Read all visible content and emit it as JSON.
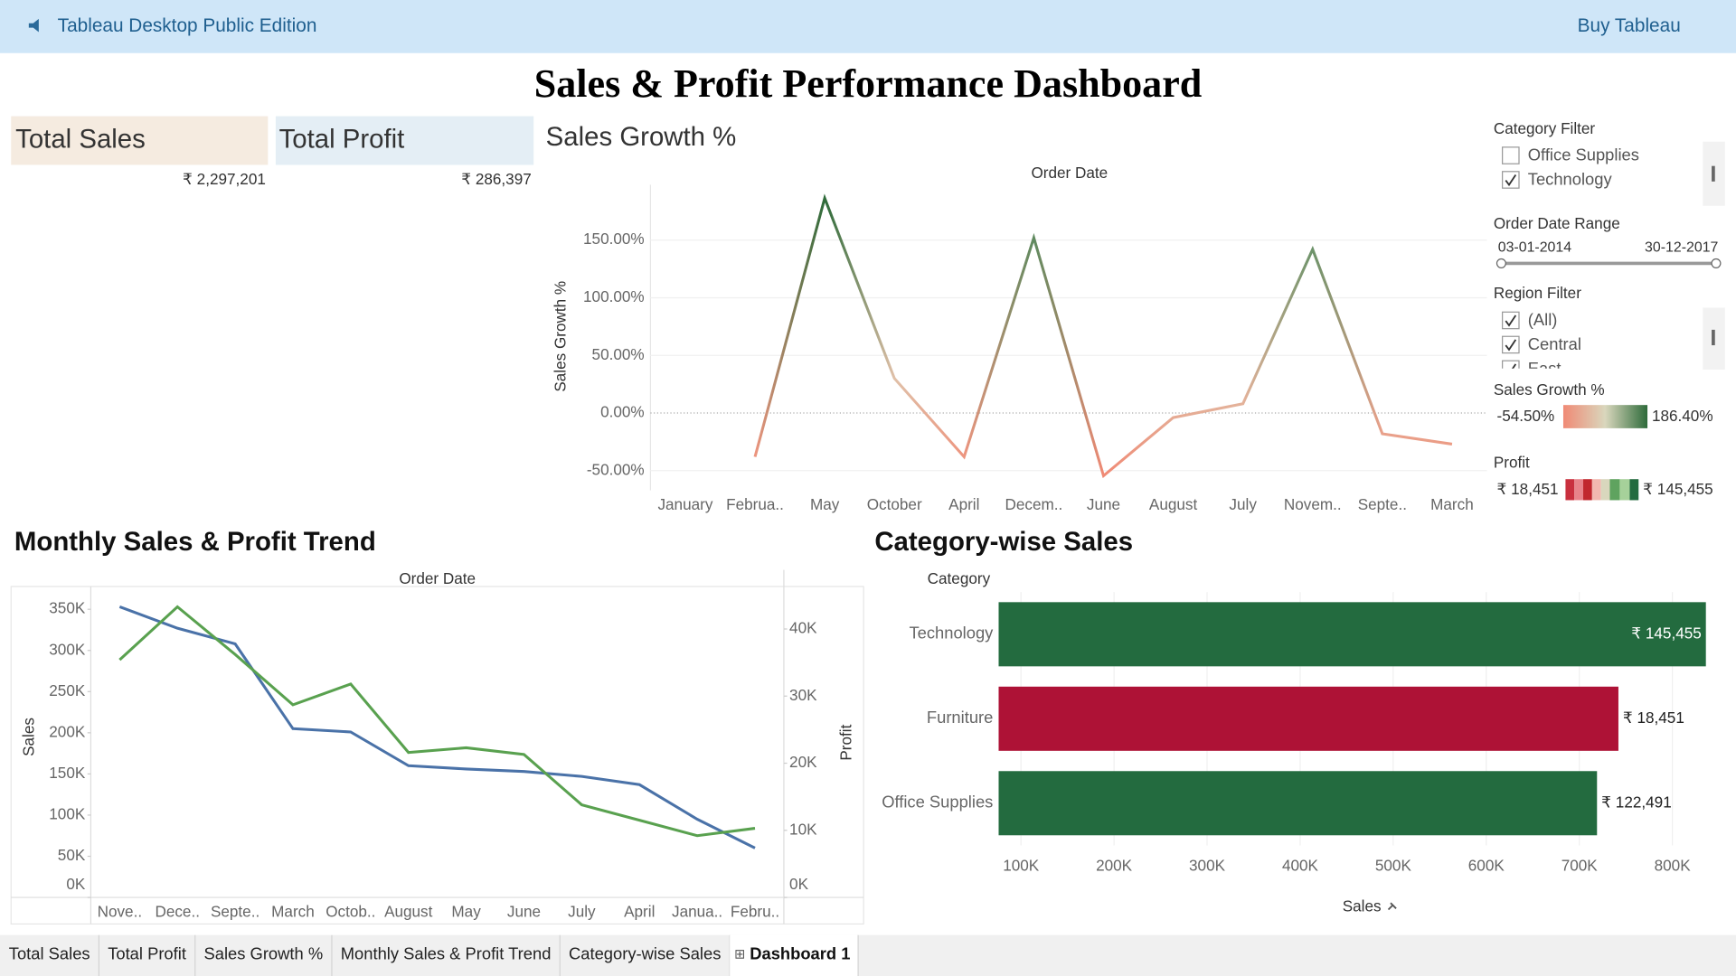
{
  "header": {
    "app_name": "Tableau Desktop Public Edition",
    "buy": "Buy Tableau"
  },
  "title": "Sales & Profit Performance Dashboard",
  "kpis": [
    {
      "label": "Total Sales",
      "value": "₹ 2,297,201"
    },
    {
      "label": "Total Profit",
      "value": "₹ 286,397"
    }
  ],
  "filters": {
    "category": {
      "title": "Category Filter",
      "options": [
        {
          "label": "Office Supplies",
          "checked": false
        },
        {
          "label": "Technology",
          "checked": true
        }
      ]
    },
    "date_range": {
      "title": "Order Date Range",
      "start": "03-01-2014",
      "end": "30-12-2017"
    },
    "region": {
      "title": "Region Filter",
      "options": [
        {
          "label": "(All)",
          "checked": true
        },
        {
          "label": "Central",
          "checked": true
        },
        {
          "label": "East",
          "checked": true
        }
      ]
    }
  },
  "tabs": [
    {
      "label": "Total Sales",
      "active": false
    },
    {
      "label": "Total Profit",
      "active": false
    },
    {
      "label": "Sales Growth %",
      "active": false
    },
    {
      "label": "Monthly Sales & Profit Trend",
      "active": false
    },
    {
      "label": "Category-wise Sales",
      "active": false
    },
    {
      "label": "Dashboard 1",
      "active": true
    }
  ],
  "chart_data": [
    {
      "type": "line",
      "title": "Sales Growth %",
      "x_label": "Order Date",
      "y_label": "Sales Growth %",
      "categories": [
        "January",
        "Februa..",
        "May",
        "October",
        "April",
        "Decem..",
        "June",
        "August",
        "July",
        "Novem..",
        "Septe..",
        "March"
      ],
      "values": [
        null,
        -38,
        186.4,
        30,
        -38,
        152,
        -54.5,
        -4,
        8,
        142,
        -18,
        -27
      ],
      "ylim": [
        -67,
        198
      ],
      "yticks": [
        {
          "value": -50,
          "label": "-50.00%"
        },
        {
          "value": 0,
          "label": "0.00%"
        },
        {
          "value": 50,
          "label": "50.00%"
        },
        {
          "value": 100,
          "label": "100.00%"
        },
        {
          "value": 150,
          "label": "150.00%"
        }
      ],
      "color_title": "Sales Growth %",
      "color_range": [
        {
          "value": -54.5,
          "label": "-54.50%"
        },
        {
          "value": 186.4,
          "label": "186.40%"
        }
      ],
      "colors": [
        "#f08a75",
        "#d9d7bd",
        "#2e6b3a"
      ]
    },
    {
      "type": "line",
      "title": "Monthly Sales & Profit Trend",
      "x_label": "Order Date",
      "y_label": "Sales",
      "y2_label": "Profit",
      "categories": [
        "Nove..",
        "Dece..",
        "Septe..",
        "March",
        "Octob..",
        "August",
        "May",
        "June",
        "July",
        "April",
        "Janua..",
        "Febru.."
      ],
      "series": [
        {
          "name": "Sales",
          "color": "#4a72a8",
          "values": [
            353000,
            327000,
            308000,
            205000,
            201000,
            160000,
            156000,
            153000,
            147000,
            137000,
            95000,
            60000
          ]
        },
        {
          "name": "Profit",
          "color": "#59a14f",
          "axis": "y2",
          "values": [
            35400,
            43300,
            36200,
            28700,
            31800,
            21600,
            22300,
            21300,
            13800,
            11500,
            9200,
            10300
          ]
        }
      ],
      "ylim": [
        0,
        375000
      ],
      "yticks": [
        {
          "value": 0,
          "label": "0K"
        },
        {
          "value": 50000,
          "label": "50K"
        },
        {
          "value": 100000,
          "label": "100K"
        },
        {
          "value": 150000,
          "label": "150K"
        },
        {
          "value": 200000,
          "label": "200K"
        },
        {
          "value": 250000,
          "label": "250K"
        },
        {
          "value": 300000,
          "label": "300K"
        },
        {
          "value": 350000,
          "label": "350K"
        }
      ],
      "y2lim": [
        0,
        46000
      ],
      "y2ticks": [
        {
          "value": 0,
          "label": "0K"
        },
        {
          "value": 10000,
          "label": "10K"
        },
        {
          "value": 20000,
          "label": "20K"
        },
        {
          "value": 30000,
          "label": "30K"
        },
        {
          "value": 40000,
          "label": "40K"
        }
      ]
    },
    {
      "type": "hbar",
      "title": "Category-wise Sales",
      "category_label": "Category",
      "x_label": "Sales",
      "categories": [
        "Technology",
        "Furniture",
        "Office Supplies"
      ],
      "values": [
        836000,
        742000,
        719000
      ],
      "profit": [
        145455,
        18451,
        122491
      ],
      "value_labels": [
        "₹ 145,455",
        "₹ 18,451",
        "₹ 122,491"
      ],
      "colors": [
        "#236b3f",
        "#ae1236",
        "#236b3f"
      ],
      "xlim": [
        76000,
        841000
      ],
      "xticks": [
        {
          "value": 100000,
          "label": "100K"
        },
        {
          "value": 200000,
          "label": "200K"
        },
        {
          "value": 300000,
          "label": "300K"
        },
        {
          "value": 400000,
          "label": "400K"
        },
        {
          "value": 500000,
          "label": "500K"
        },
        {
          "value": 600000,
          "label": "600K"
        },
        {
          "value": 700000,
          "label": "700K"
        },
        {
          "value": 800000,
          "label": "800K"
        }
      ],
      "color_title": "Profit",
      "color_range": [
        {
          "value": 18451,
          "label": "₹ 18,451"
        },
        {
          "value": 145455,
          "label": "₹ 145,455"
        }
      ]
    }
  ]
}
